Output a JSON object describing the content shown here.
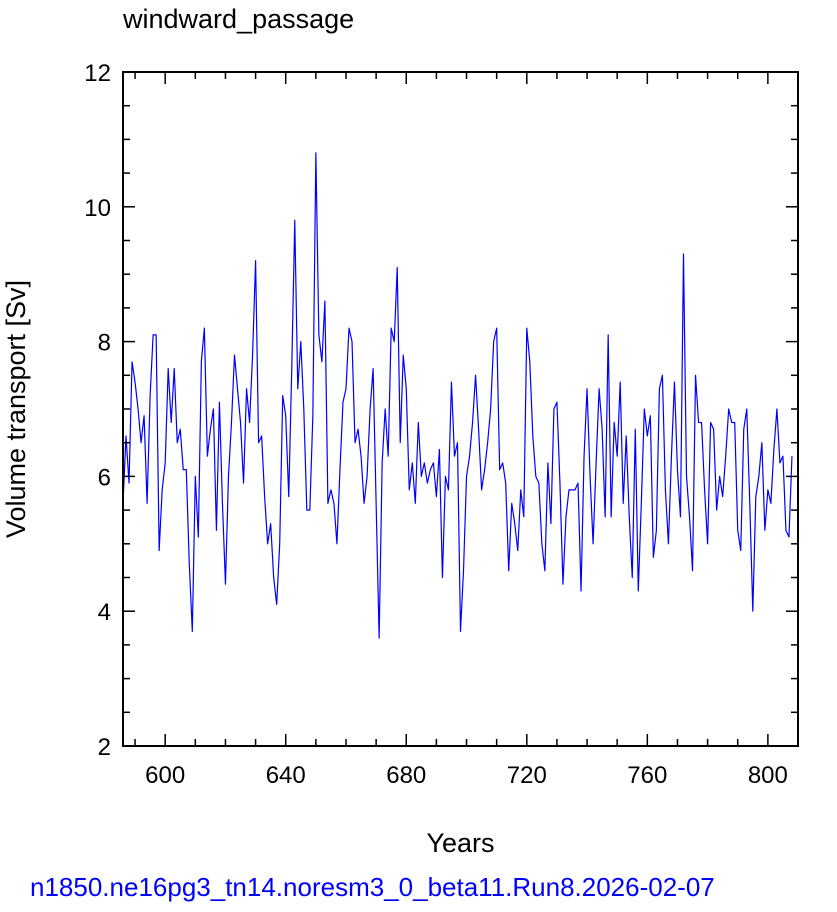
{
  "chart_data": {
    "type": "line",
    "title": "windward_passage",
    "xlabel": "Years",
    "ylabel": "Volume transport [Sv]",
    "footer": "n1850.ne16pg3_tn14.noresm3_0_beta11.Run8.2026-02-07",
    "xlim": [
      586,
      810
    ],
    "ylim": [
      2,
      12
    ],
    "x_ticks": [
      600,
      640,
      680,
      720,
      760,
      800
    ],
    "y_ticks": [
      2,
      4,
      6,
      8,
      10,
      12
    ],
    "grid": false,
    "line_color": "#0000ff",
    "footer_color": "#0000ff",
    "series": [
      {
        "x_start": 586,
        "x_step": 1,
        "values": [
          5.6,
          6.6,
          5.9,
          7.7,
          7.4,
          7.0,
          6.5,
          6.9,
          5.6,
          7.2,
          8.1,
          8.1,
          4.9,
          5.8,
          6.2,
          7.6,
          6.8,
          7.6,
          6.5,
          6.7,
          6.1,
          6.1,
          4.7,
          3.7,
          6.0,
          5.1,
          7.7,
          8.2,
          6.3,
          6.7,
          7.0,
          5.2,
          7.1,
          5.6,
          4.4,
          6.0,
          6.8,
          7.8,
          7.3,
          6.8,
          5.9,
          7.3,
          6.8,
          7.8,
          9.2,
          6.5,
          6.6,
          5.7,
          5.0,
          5.3,
          4.5,
          4.1,
          5.0,
          7.2,
          6.9,
          5.7,
          7.6,
          9.8,
          7.3,
          8.0,
          7.0,
          5.5,
          5.5,
          6.9,
          10.8,
          8.1,
          7.7,
          8.6,
          5.6,
          5.8,
          5.6,
          5.0,
          6.1,
          7.1,
          7.3,
          8.2,
          8.0,
          6.5,
          6.7,
          6.3,
          5.6,
          6.0,
          7.0,
          7.6,
          5.6,
          3.6,
          6.2,
          7.0,
          6.3,
          8.2,
          8.0,
          9.1,
          6.5,
          7.8,
          7.3,
          5.8,
          6.2,
          5.6,
          6.8,
          6.0,
          6.2,
          5.9,
          6.1,
          6.2,
          5.7,
          6.4,
          4.5,
          6.0,
          5.8,
          7.4,
          6.3,
          6.5,
          3.7,
          4.6,
          6.0,
          6.3,
          6.8,
          7.5,
          6.7,
          5.8,
          6.1,
          6.5,
          7.0,
          8.0,
          8.2,
          6.1,
          6.2,
          5.9,
          4.6,
          5.6,
          5.3,
          4.9,
          5.8,
          5.4,
          8.2,
          7.7,
          6.6,
          6.0,
          5.9,
          5.0,
          4.6,
          6.2,
          5.3,
          7.0,
          7.1,
          5.9,
          4.4,
          5.4,
          5.8,
          5.8,
          5.8,
          5.9,
          4.3,
          6.3,
          7.3,
          6.0,
          5.0,
          6.2,
          7.3,
          6.7,
          5.4,
          8.1,
          5.4,
          6.8,
          6.3,
          7.4,
          5.6,
          6.6,
          5.4,
          4.5,
          6.7,
          4.3,
          5.6,
          7.0,
          6.6,
          6.9,
          4.8,
          5.2,
          7.3,
          7.5,
          5.8,
          5.0,
          6.3,
          7.4,
          6.1,
          5.4,
          9.3,
          6.0,
          5.4,
          4.6,
          7.5,
          6.8,
          6.8,
          5.8,
          5.0,
          6.8,
          6.7,
          5.5,
          6.0,
          5.7,
          6.3,
          7.0,
          6.8,
          6.8,
          5.2,
          4.9,
          6.7,
          7.0,
          5.6,
          4.0,
          5.7,
          6.0,
          6.5,
          5.2,
          5.8,
          5.6,
          6.4,
          7.0,
          6.2,
          6.3,
          5.2,
          5.1,
          6.3
        ]
      }
    ]
  }
}
